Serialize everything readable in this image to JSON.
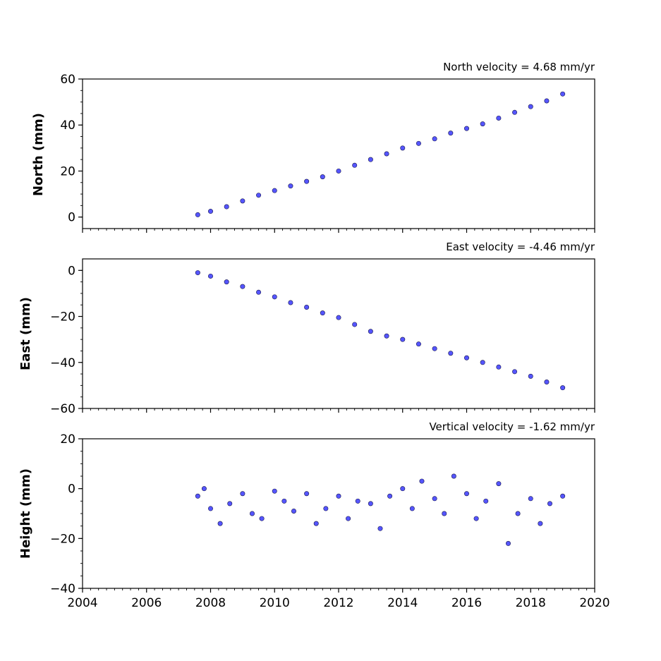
{
  "chart_data": [
    {
      "type": "scatter",
      "title": "North velocity = 4.68 mm/yr",
      "xlabel": "",
      "ylabel": "North (mm)",
      "xlim": [
        2004,
        2020
      ],
      "ylim": [
        -5,
        60
      ],
      "yticks": [
        0,
        20,
        40,
        60
      ],
      "ytick_labels": [
        "0",
        "20",
        "40",
        "60"
      ],
      "grid": false,
      "marker_color": "#5555ff",
      "series": [
        {
          "x": [
            2007.6,
            2008.0,
            2008.5,
            2009.0,
            2009.5,
            2010.0,
            2010.5,
            2011.0,
            2011.5,
            2012.0,
            2012.5,
            2013.0,
            2013.5,
            2014.0,
            2014.5,
            2015.0,
            2015.5,
            2016.0,
            2016.5,
            2017.0,
            2017.5,
            2018.0,
            2018.5,
            2019.0
          ],
          "y": [
            1.0,
            2.5,
            4.5,
            7.0,
            9.5,
            11.5,
            13.5,
            15.5,
            17.5,
            20.0,
            22.5,
            25.0,
            27.5,
            30.0,
            32.0,
            34.0,
            36.5,
            38.5,
            40.5,
            43.0,
            45.5,
            48.0,
            50.5,
            53.5
          ]
        }
      ]
    },
    {
      "type": "scatter",
      "title": "East velocity = -4.46 mm/yr",
      "xlabel": "",
      "ylabel": "East (mm)",
      "xlim": [
        2004,
        2020
      ],
      "ylim": [
        -60,
        5
      ],
      "yticks": [
        0,
        -20,
        -40,
        -60
      ],
      "ytick_labels": [
        "0",
        "−20",
        "−40",
        "−60"
      ],
      "grid": false,
      "marker_color": "#5555ff",
      "series": [
        {
          "x": [
            2007.6,
            2008.0,
            2008.5,
            2009.0,
            2009.5,
            2010.0,
            2010.5,
            2011.0,
            2011.5,
            2012.0,
            2012.5,
            2013.0,
            2013.5,
            2014.0,
            2014.5,
            2015.0,
            2015.5,
            2016.0,
            2016.5,
            2017.0,
            2017.5,
            2018.0,
            2018.5,
            2019.0
          ],
          "y": [
            -1.0,
            -2.5,
            -5.0,
            -7.0,
            -9.5,
            -11.5,
            -14.0,
            -16.0,
            -18.5,
            -20.5,
            -23.5,
            -26.5,
            -28.5,
            -30.0,
            -32.0,
            -34.0,
            -36.0,
            -38.0,
            -40.0,
            -42.0,
            -44.0,
            -46.0,
            -48.5,
            -51.0
          ]
        }
      ]
    },
    {
      "type": "scatter",
      "title": "Vertical velocity = -1.62 mm/yr",
      "xlabel": "",
      "ylabel": "Height (mm)",
      "xlim": [
        2004,
        2020
      ],
      "ylim": [
        -40,
        20
      ],
      "yticks": [
        20,
        0,
        -20,
        -40
      ],
      "ytick_labels": [
        "20",
        "0",
        "−20",
        "−40"
      ],
      "xticks": [
        2004,
        2006,
        2008,
        2010,
        2012,
        2014,
        2016,
        2018,
        2020
      ],
      "xtick_labels": [
        "2004",
        "2006",
        "2008",
        "2010",
        "2012",
        "2014",
        "2016",
        "2018",
        "2020"
      ],
      "grid": false,
      "marker_color": "#5555ff",
      "series": [
        {
          "x": [
            2007.6,
            2007.8,
            2008.0,
            2008.3,
            2008.6,
            2009.0,
            2009.3,
            2009.6,
            2010.0,
            2010.3,
            2010.6,
            2011.0,
            2011.3,
            2011.6,
            2012.0,
            2012.3,
            2012.6,
            2013.0,
            2013.3,
            2013.6,
            2014.0,
            2014.3,
            2014.6,
            2015.0,
            2015.3,
            2015.6,
            2016.0,
            2016.3,
            2016.6,
            2017.0,
            2017.3,
            2017.6,
            2018.0,
            2018.3,
            2018.6,
            2019.0
          ],
          "y": [
            -3,
            0,
            -8,
            -14,
            -6,
            -2,
            -10,
            -12,
            -1,
            -5,
            -9,
            -2,
            -14,
            -8,
            -3,
            -12,
            -5,
            -6,
            -16,
            -3,
            0,
            -8,
            3,
            -4,
            -10,
            5,
            -2,
            -12,
            -5,
            2,
            -22,
            -10,
            -4,
            -14,
            -6,
            -3
          ]
        }
      ]
    }
  ]
}
